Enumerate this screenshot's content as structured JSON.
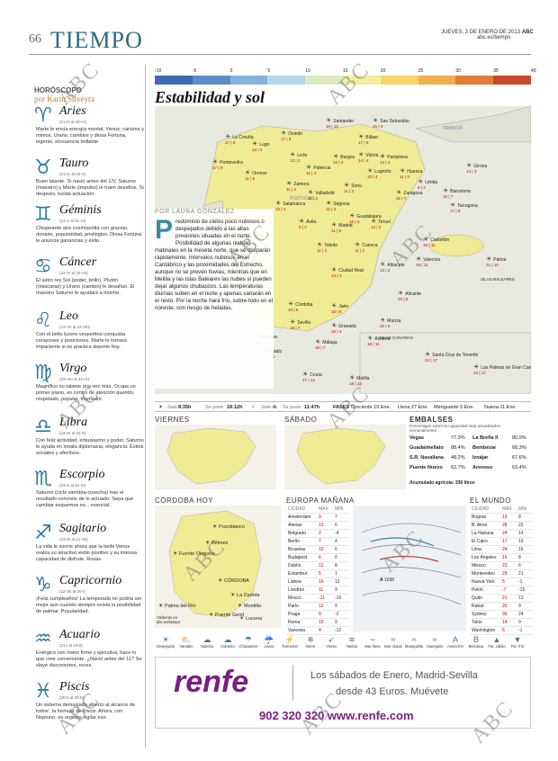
{
  "header": {
    "page_number": "66",
    "section": "TIEMPO",
    "date_line": "JUEVES, 3 DE ENERO DE 2013",
    "brand": "ABC",
    "site": "abc.es/tiempo"
  },
  "watermark": "ABC",
  "horoscope": {
    "title": "HORÓSCOPO",
    "author": "por Karin Silveyra",
    "signs": [
      {
        "glyph": "♈",
        "name": "Aries",
        "dates": "(21-III al 20-IV)",
        "text": "Marte le envía energía mental, Venus, carisma y mimos, Urano, cambios y diosa Fortuna, ingenio, elocuencia brillante."
      },
      {
        "glyph": "♉",
        "name": "Tauro",
        "dates": "(21-IV al 20-V)",
        "text": "Buen talante. Si nació antes del 1/V, Saturno (maestro) y Marte (impulso) le traen desafíos. Si después, lucida actuación."
      },
      {
        "glyph": "♊",
        "name": "Géminis",
        "dates": "(21-V al 21-VI)",
        "text": "Chispeante aire cosmopolita con gracejo, donaire, popularidad, privilegios. Diosa Fortuna le anuncia ganancias y éxito."
      },
      {
        "glyph": "♋",
        "name": "Cáncer",
        "dates": "(22-VI al 22-VII)",
        "text": "El astro rey Sol (poder, brillo), Plutón (máscaras) y Urano (cambio) le desafían. El maestro Saturno le ayudará a triunfar."
      },
      {
        "glyph": "♌",
        "name": "Leo",
        "dates": "(23-VII al 22-VIII)",
        "text": "Con el bello lucero vespertino conquista corazones y posiciones. Marte le tornará impaciente si no practica deporte hoy."
      },
      {
        "glyph": "♍",
        "name": "Virgo",
        "dates": "(23-VIII al 22-IX)",
        "text": "Magnífico su talante una vez más. Ocupa un primer plano, es centro de atención querido, respetado, popular, triunfador."
      },
      {
        "glyph": "♎",
        "name": "Libra",
        "dates": "(23-IX al 22-X)",
        "text": "Con feliz actividad, entusiasmo y poder. Saturno le ayuda en innata diplomacia, elegancia. Éxitos sociales y afectivos."
      },
      {
        "glyph": "♏",
        "name": "Escorpio",
        "dates": "(23-X al 22-XI)",
        "text": "Saturno (ciclo siembra-cosecha) trae el resultado concreto de lo actuado. Sepa que cambiar esquemas es... esencial."
      },
      {
        "glyph": "♐",
        "name": "Sagitario",
        "dates": "(23-XI al 21-XII)",
        "text": "La vida le sonríe ahora que la bella Venus realza su atractivo estilo positivo y su intensa capacidad de disfrute. Rosas."
      },
      {
        "glyph": "♑",
        "name": "Capricornio",
        "dates": "(22-XII al 20-I)",
        "text": "¡Feliz cumpleaños! La temporada no podría ser mejor aun cuando siempre exista la posibilidad de palmar. Popularidad."
      },
      {
        "glyph": "♒",
        "name": "Acuario",
        "dates": "(21-I al 19-II)",
        "text": "Enérgico con mano firme y ejecutiva, hace lo que cree conveniente. ¿Nació antes del 11? So slaye disconsores, roces."
      },
      {
        "glyph": "♓",
        "name": "Piscis",
        "dates": "(20-II al 20-III)",
        "text": "Un sistema demasiado abierto al alcance de todos', la formula de Piscis. Ahora, con Neptuno, es urgente vigilar eso."
      }
    ]
  },
  "temperature_scale": {
    "labels": [
      "-10",
      "-5",
      "0",
      "5",
      "10",
      "15",
      "20",
      "25",
      "30",
      "35",
      "40"
    ],
    "colors": [
      "#3d6ab0",
      "#5d8cc8",
      "#86b2dc",
      "#b6d6ea",
      "#dcecc0",
      "#f4ef9a",
      "#f6d66a",
      "#f1ae4d",
      "#e47d3a",
      "#c84a2c"
    ]
  },
  "headline": "Estabilidad y sol",
  "article": {
    "byline": "POR LAURA GONZÁLEZ",
    "dropcap": "P",
    "text": "redominio de cielos poco nubosos o despejados debido a las altas presiones situadas en el norte. Posibilidad de algunas nieblas matinales en la meseta norte, que se disiparán rápidamente. Intervalos nubosos en el Cantábrico y las proximidades del Estrecho, aunque no se prevén lluvias, mientras que en Melilla y las Islas Baleares las nubes sí pueden dejar algunos chubascos. Las temperaturas diurnas suben en el norte y apenas variarán en el resto. Por la noche hará frío, sobre todo en el noreste, con riesgo de heladas."
  },
  "map": {
    "labels": {
      "portugal": "PORTUGAL",
      "francia": "FRANCIA",
      "baleares": "ISLAS BALEARES",
      "canarias": "ISLAS CANARIAS"
    },
    "cities": [
      {
        "name": "La Coruña",
        "temps": "17 | 8"
      },
      {
        "name": "Oviedo",
        "temps": "17 | 6"
      },
      {
        "name": "Santander",
        "temps": "16 | 12"
      },
      {
        "name": "San Sebastián",
        "temps": "15 | 9"
      },
      {
        "name": "Bilbao",
        "temps": "17 | 6"
      },
      {
        "name": "Lugo",
        "temps": "14 | 4"
      },
      {
        "name": "Pontevedra",
        "temps": "17 | 9"
      },
      {
        "name": "Orense",
        "temps": "11 | 6"
      },
      {
        "name": "León",
        "temps": "12 | 2"
      },
      {
        "name": "Palencia",
        "temps": "11 | 4"
      },
      {
        "name": "Burgos",
        "temps": "10 | 3"
      },
      {
        "name": "Vitoria",
        "temps": "14 | 4"
      },
      {
        "name": "Pamplona",
        "temps": "14 | 3"
      },
      {
        "name": "Logroño",
        "temps": "13 | 4"
      },
      {
        "name": "Huesca",
        "temps": "11 | 0"
      },
      {
        "name": "Girona",
        "temps": "14 | 3"
      },
      {
        "name": "Lérida",
        "temps": "9 | 4"
      },
      {
        "name": "Barcelona",
        "temps": "16 | 7"
      },
      {
        "name": "Zamora",
        "temps": "11 | 2"
      },
      {
        "name": "Valladolid",
        "temps": "11 | 2"
      },
      {
        "name": "Soria",
        "temps": "11 | 3"
      },
      {
        "name": "Zaragoza",
        "temps": "15 | 7"
      },
      {
        "name": "Tarragona",
        "temps": "17 | 9"
      },
      {
        "name": "Salamanca",
        "temps": "10 | 2"
      },
      {
        "name": "Segovia",
        "temps": "11 | 3"
      },
      {
        "name": "Guadalajara",
        "temps": "10 | 4"
      },
      {
        "name": "Ávila",
        "temps": "9 | 2"
      },
      {
        "name": "Madrid",
        "temps": "11 | 5"
      },
      {
        "name": "Teruel",
        "temps": "14 | 2"
      },
      {
        "name": "Castellón",
        "temps": "19 | 11"
      },
      {
        "name": "Cáceres",
        "temps": "16 | 6"
      },
      {
        "name": "Toledo",
        "temps": "11 | 4"
      },
      {
        "name": "Cuenca",
        "temps": "11 | 2"
      },
      {
        "name": "Valencia",
        "temps": "19 | 11"
      },
      {
        "name": "Palma",
        "temps": "21 | 10"
      },
      {
        "name": "Badajoz",
        "temps": "15 | 5"
      },
      {
        "name": "Ciudad Real",
        "temps": "14 | 3"
      },
      {
        "name": "Albacete",
        "temps": "13 | 2"
      },
      {
        "name": "Alicante",
        "temps": "20 | 8"
      },
      {
        "name": "Córdoba",
        "temps": "15 | 5"
      },
      {
        "name": "Jaén",
        "temps": "15 | 6"
      },
      {
        "name": "Murcia",
        "temps": "20 | 6"
      },
      {
        "name": "Sevilla",
        "temps": "18 | 7"
      },
      {
        "name": "Huelva",
        "temps": "18 | 6"
      },
      {
        "name": "Granada",
        "temps": "15 | 4"
      },
      {
        "name": "Almería",
        "temps": "18 | 11"
      },
      {
        "name": "Málaga",
        "temps": "18 | 7"
      },
      {
        "name": "Cádiz",
        "temps": "17 | 11"
      },
      {
        "name": "Ceuta",
        "temps": "17 | 14"
      },
      {
        "name": "Melilla",
        "temps": "16 | 14"
      },
      {
        "name": "Santa Cruz de Tenerife",
        "temps": "24 | 17"
      },
      {
        "name": "Las Palmas de Gran Canaria",
        "temps": "24 | 17"
      }
    ]
  },
  "sunbar": {
    "sale_sun_label": "Sale",
    "sale_sun": "8:35h",
    "puesta_sun_label": "Se pone",
    "puesta_sun": "18:12h",
    "sale_moon_label": "Sale",
    "sale_moon": "-h",
    "puesta_moon_label": "Se pone",
    "puesta_moon": "11:47h",
    "fases": "FASES",
    "creciente": "Creciente 19 Ene.",
    "llena": "Llena 27 Ene.",
    "menguante": "Menguante 5 Ene.",
    "nueva": "Nueva 11 Ene."
  },
  "forecast": {
    "viernes": "VIERNES",
    "sabado": "SÁBADO"
  },
  "embalses": {
    "title": "EMBALSES",
    "subtitle": "Porcentajes sobre la capacidad total actualizados semanalmente",
    "rows": [
      [
        "Vegas",
        "77,3%",
        "La Breña II",
        "80,9%"
      ],
      [
        "Guadalmellato",
        "88,4%",
        "Bembézar",
        "68,3%"
      ],
      [
        "S.R. Navallana",
        "48,2%",
        "Iznájar",
        "67,6%"
      ],
      [
        "Puente Nuevo",
        "62,7%",
        "Arenoso",
        "63,4%"
      ]
    ],
    "total": "Acumulado agrícola: 336 litros"
  },
  "cordoba": {
    "title": "CÓRDOBA HOY",
    "places": [
      "Pozoblanco",
      "Bélmez",
      "Fuente Obejuna",
      "CÓRDOBA",
      "La Carlota",
      "Montilla",
      "Palma del Río",
      "Puente Genil",
      "Lucena"
    ],
    "footer": "Visítenos en abc.es/tiempo"
  },
  "europa": {
    "title": "EUROPA MAÑANA",
    "headers": [
      "CIUDAD",
      "MÁX",
      "MÍN"
    ],
    "rows": [
      [
        "Amsterdam",
        "9",
        "7"
      ],
      [
        "Atenas",
        "13",
        "6"
      ],
      [
        "Belgrado",
        "2",
        "-4"
      ],
      [
        "Berlín",
        "7",
        "4"
      ],
      [
        "Bruselas",
        "10",
        "6"
      ],
      [
        "Budapest",
        "6",
        "0"
      ],
      [
        "Dublín",
        "12",
        "8"
      ],
      [
        "Estambul",
        "5",
        "1"
      ],
      [
        "Lisboa",
        "16",
        "12"
      ],
      [
        "Londres",
        "11",
        "9"
      ],
      [
        "Moscú",
        "-11",
        "-16"
      ],
      [
        "París",
        "12",
        "9"
      ],
      [
        "Praga",
        "0",
        "-2"
      ],
      [
        "Roma",
        "15",
        "9"
      ],
      [
        "Varsovia",
        "4",
        "-12"
      ]
    ],
    "pressure": "1036"
  },
  "mundo": {
    "title": "EL MUNDO",
    "headers": [
      "CIUDAD",
      "MÁX",
      "MÍN"
    ],
    "rows": [
      [
        "Bogotá",
        "19",
        "8"
      ],
      [
        "B. Aires",
        "28",
        "22"
      ],
      [
        "La Habana",
        "24",
        "14"
      ],
      [
        "El Cairo",
        "17",
        "10"
      ],
      [
        "Lima",
        "24",
        "16"
      ],
      [
        "Los Ángeles",
        "16",
        "8"
      ],
      [
        "México",
        "22",
        "6"
      ],
      [
        "Montevideo",
        "29",
        "21"
      ],
      [
        "Nueva York",
        "5",
        "-1"
      ],
      [
        "Pekín",
        "-7",
        "-15"
      ],
      [
        "Quito",
        "21",
        "13"
      ],
      [
        "Rabat",
        "20",
        "9"
      ],
      [
        "Sydney",
        "36",
        "24"
      ],
      [
        "Tokio",
        "14",
        "0"
      ],
      [
        "Washington",
        "6",
        "-1"
      ]
    ]
  },
  "legend": [
    "Despejado",
    "Variable",
    "Nuboso",
    "Cubierto",
    "Chubascos",
    "Lluvia",
    "Tormenta",
    "Nieve",
    "Viento",
    "Niebla",
    "Mar llana",
    "Mar rizada",
    "Marejadilla",
    "Marejada",
    "Anticiclón",
    "Borrasca",
    "Fte. cálido",
    "Fte. frío"
  ],
  "ad": {
    "logo": "renfe",
    "line1": "Los sábados de Enero, Madrid-Sevilla",
    "line2": "desde 43 Euros. Muévete",
    "phone": "902 320 320 www.renfe.com"
  }
}
